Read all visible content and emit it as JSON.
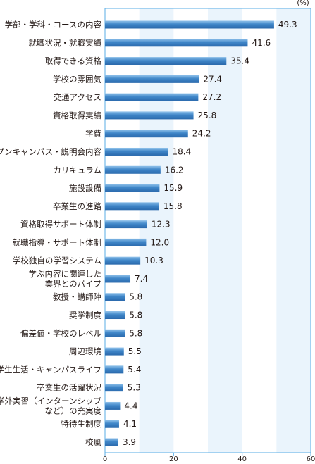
{
  "chart_data": {
    "type": "bar",
    "orientation": "horizontal",
    "unit": "(%)",
    "xlim": [
      0,
      60
    ],
    "x_ticks": [
      0,
      20,
      40,
      60
    ],
    "grid": "alternating shaded bands every 10",
    "categories": [
      "学部・学科・コースの内容",
      "就職状況・就職実績",
      "取得できる資格",
      "学校の雰囲気",
      "交通アクセス",
      "資格取得実績",
      "学費",
      "オープンキャンパス・説明会内容",
      "カリキュラム",
      "施設設備",
      "卒業生の進路",
      "資格取得サポート体制",
      "就職指導・サポート体制",
      "学校独自の学習システム",
      "学ぶ内容に関連した\n業界とのパイプ",
      "教授・講師陣",
      "奨学制度",
      "偏差値・学校のレベル",
      "周辺環境",
      "学生生活・キャンパスライフ",
      "卒業生の活躍状況",
      "学外実習（インターンシップ\nなど）の充実度",
      "特待生制度",
      "校風"
    ],
    "values": [
      49.3,
      41.6,
      35.4,
      27.4,
      27.2,
      25.8,
      24.2,
      18.4,
      16.2,
      15.9,
      15.8,
      12.3,
      12.0,
      10.3,
      7.4,
      5.8,
      5.8,
      5.8,
      5.5,
      5.4,
      5.3,
      4.4,
      4.1,
      3.9
    ],
    "value_labels": [
      "49.3",
      "41.6",
      "35.4",
      "27.4",
      "27.2",
      "25.8",
      "24.2",
      "18.4",
      "16.2",
      "15.9",
      "15.8",
      "12.3",
      "12.0",
      "10.3",
      "7.4",
      "5.8",
      "5.8",
      "5.8",
      "5.5",
      "5.4",
      "5.3",
      "4.4",
      "4.1",
      "3.9"
    ],
    "colors": {
      "bar": "#3f86c8",
      "bar_dark": "#2a69ac",
      "bar_light": "#8fc1ea",
      "band": "#eaf4fc",
      "frame": "#5aaee6"
    }
  }
}
